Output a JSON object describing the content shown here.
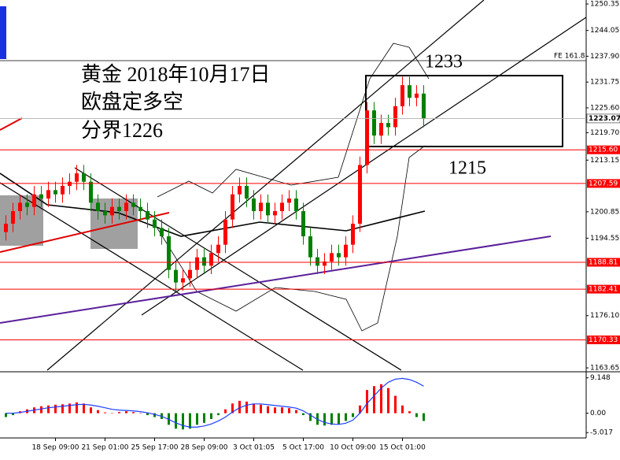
{
  "chart_data": {
    "type": "candlestick",
    "annotations": [
      "黄金 2018年10月17日",
      "欧盘定多空",
      "分界1226",
      "1233",
      "1215",
      "FE 161.8"
    ],
    "categories": [
      null,
      null,
      null,
      null,
      null,
      null,
      null,
      "18 Sep 09:00",
      null,
      null,
      null,
      null,
      null,
      null,
      "21 Sep 01:00",
      null,
      null,
      null,
      null,
      null,
      null,
      "25 Sep 17:00",
      null,
      null,
      null,
      null,
      null,
      null,
      "28 Sep 09:00",
      null,
      null,
      null,
      null,
      null,
      null,
      "3 Oct 01:05",
      null,
      null,
      null,
      null,
      null,
      null,
      "5 Oct 17:00",
      null,
      null,
      null,
      null,
      null,
      null,
      "10 Oct 09:00",
      null,
      null,
      null,
      null,
      null,
      null,
      "15 Oct 01:00",
      null,
      null,
      null
    ],
    "open": [
      1196,
      1198,
      1201,
      1203,
      1202,
      1205,
      1204,
      1206,
      1205,
      1207,
      1208,
      1210,
      1208,
      1203,
      1201,
      1200,
      1202,
      1201,
      1203,
      1202,
      1201,
      1199,
      1197,
      1195,
      1187,
      1184,
      1185,
      1187,
      1190,
      1188,
      1191,
      1193,
      1199,
      1205,
      1207,
      1204,
      1201,
      1203,
      1200,
      1201,
      1203,
      1204,
      1201,
      1195,
      1190,
      1188,
      1189,
      1191,
      1190,
      1193,
      1198,
      1212,
      1225,
      1219,
      1222,
      1221,
      1226,
      1231,
      1228,
      1229
    ],
    "high": [
      1200,
      1203,
      1205,
      1205,
      1207,
      1207,
      1208,
      1208,
      1209,
      1210,
      1212,
      1212,
      1210,
      1205,
      1203,
      1204,
      1204,
      1205,
      1205,
      1204,
      1203,
      1201,
      1199,
      1197,
      1189,
      1187,
      1189,
      1192,
      1192,
      1193,
      1195,
      1201,
      1207,
      1209,
      1209,
      1206,
      1205,
      1205,
      1203,
      1205,
      1206,
      1206,
      1203,
      1197,
      1192,
      1191,
      1193,
      1193,
      1195,
      1200,
      1214,
      1227,
      1227,
      1224,
      1224,
      1228,
      1233,
      1233,
      1231,
      1231
    ],
    "low": [
      1194,
      1196,
      1199,
      1200,
      1200,
      1202,
      1202,
      1203,
      1203,
      1205,
      1206,
      1206,
      1201,
      1199,
      1198,
      1198,
      1199,
      1199,
      1200,
      1199,
      1197,
      1195,
      1193,
      1185,
      1182,
      1182,
      1183,
      1185,
      1186,
      1186,
      1189,
      1191,
      1197,
      1203,
      1202,
      1199,
      1199,
      1198,
      1198,
      1199,
      1201,
      1199,
      1193,
      1188,
      1186,
      1186,
      1187,
      1188,
      1188,
      1191,
      1196,
      1210,
      1217,
      1217,
      1219,
      1219,
      1224,
      1226,
      1226,
      1221
    ],
    "close": [
      1198,
      1201,
      1203,
      1202,
      1205,
      1204,
      1206,
      1205,
      1207,
      1208,
      1210,
      1208,
      1203,
      1201,
      1200,
      1202,
      1201,
      1203,
      1202,
      1201,
      1199,
      1197,
      1195,
      1187,
      1184,
      1185,
      1187,
      1190,
      1188,
      1191,
      1193,
      1199,
      1205,
      1207,
      1204,
      1201,
      1203,
      1200,
      1201,
      1203,
      1204,
      1201,
      1195,
      1190,
      1188,
      1189,
      1191,
      1190,
      1193,
      1198,
      1212,
      1225,
      1219,
      1222,
      1221,
      1226,
      1231,
      1228,
      1229,
      1223
    ],
    "up_color": "#ff0000",
    "down_color": "#008000",
    "ylim": [
      1163.1,
      1251.3
    ],
    "yticks": [
      1250.35,
      1244.05,
      {
        "value": 1237.9,
        "label": "1237.90"
      },
      1231.75,
      {
        "value": 1225.6,
        "label": "1225.60"
      },
      {
        "value": 1219.7,
        "label": "1219.70"
      },
      1213.15,
      1200.85,
      1194.55,
      {
        "value": 1176.1,
        "label": "1176.10"
      },
      1163.65
    ],
    "current_price": 1223.07,
    "levels": {
      "values": [
        1215.6,
        1207.59,
        1188.81,
        1182.41,
        1170.33
      ],
      "value_labels": [
        "1215.60",
        "1207.59",
        "1188.81",
        "1182.41",
        "1170.33"
      ],
      "color": "#ff0000"
    },
    "macd": {
      "ylim": [
        -6.4,
        10.1
      ],
      "yticks": [
        9.148,
        {
          "value": 0,
          "label": "0.00"
        },
        -5.017
      ],
      "histogram": [
        -1,
        -0.5,
        0.5,
        1,
        1.5,
        1.8,
        2,
        2.2,
        2.3,
        2.5,
        2.8,
        2.5,
        1.5,
        0.8,
        0.2,
        0,
        0.3,
        0.5,
        0.3,
        0,
        -0.5,
        -1,
        -1.5,
        -3,
        -4,
        -4.2,
        -4,
        -3,
        -2.5,
        -1.5,
        -0.5,
        1,
        2.5,
        3.2,
        3,
        2.5,
        2.2,
        1.8,
        1.5,
        1.5,
        1.3,
        0.8,
        -0.5,
        -2,
        -3,
        -3.2,
        -3,
        -2.8,
        -2,
        -1,
        2,
        6,
        7,
        7.5,
        6.5,
        4.5,
        2,
        0.5,
        -1,
        -2
      ],
      "positive_color": "#ff0000",
      "negative_color": "#008000",
      "signal": [
        0,
        0,
        0.2,
        0.5,
        0.8,
        1.1,
        1.4,
        1.6,
        1.8,
        2,
        2.2,
        2.3,
        2.1,
        1.8,
        1.4,
        1,
        0.8,
        0.7,
        0.6,
        0.4,
        0.1,
        -0.3,
        -0.8,
        -1.6,
        -2.5,
        -3.2,
        -3.6,
        -3.6,
        -3.3,
        -2.8,
        -2,
        -1,
        0.3,
        1.4,
        2.1,
        2.4,
        2.4,
        2.2,
        2,
        1.8,
        1.6,
        1.3,
        0.6,
        -0.5,
        -1.6,
        -2.4,
        -2.8,
        -2.9,
        -2.6,
        -1.8,
        0,
        2.5,
        4.5,
        6.5,
        8,
        8.8,
        9,
        8.7,
        8,
        7
      ],
      "signal_color": "#1f3fff"
    }
  }
}
